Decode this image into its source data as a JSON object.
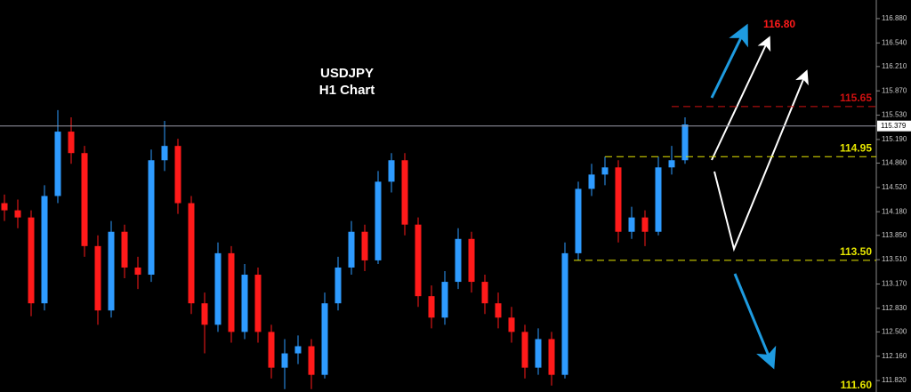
{
  "chart_data": {
    "type": "candlestick",
    "title": "USDJPY",
    "subtitle": "H1 Chart",
    "ylim": [
      111.66,
      117.14
    ],
    "yticks": [
      {
        "value": 116.88,
        "label": "116.880"
      },
      {
        "value": 116.54,
        "label": "116.540"
      },
      {
        "value": 116.21,
        "label": "116.210"
      },
      {
        "value": 115.87,
        "label": "115.870"
      },
      {
        "value": 115.53,
        "label": "115.530"
      },
      {
        "value": 115.19,
        "label": "115.190"
      },
      {
        "value": 114.86,
        "label": "114.860"
      },
      {
        "value": 114.52,
        "label": "114.520"
      },
      {
        "value": 114.18,
        "label": "114.180"
      },
      {
        "value": 113.85,
        "label": "113.850"
      },
      {
        "value": 113.51,
        "label": "113.510"
      },
      {
        "value": 113.17,
        "label": "113.170"
      },
      {
        "value": 112.83,
        "label": "112.830"
      },
      {
        "value": 112.5,
        "label": "112.500"
      },
      {
        "value": 112.16,
        "label": "112.160"
      },
      {
        "value": 111.82,
        "label": "111.820"
      }
    ],
    "up_color": "#2e9bff",
    "down_color": "#ff1a1a",
    "open": [
      114.3,
      114.2,
      114.1,
      112.9,
      114.4,
      115.3,
      115.0,
      113.7,
      112.8,
      113.9,
      113.4,
      113.3,
      114.9,
      115.1,
      114.3,
      112.9,
      112.6,
      113.6,
      112.5,
      113.3,
      112.5,
      112.0,
      112.2,
      112.3,
      111.9,
      112.9,
      113.4,
      113.9,
      113.5,
      114.6,
      114.9,
      114.0,
      113.0,
      112.7,
      113.2,
      113.8,
      113.2,
      112.9,
      112.7,
      112.5,
      112.0,
      112.4,
      111.9,
      113.6,
      114.5,
      114.7,
      114.8,
      113.9,
      114.1,
      113.9,
      114.8,
      114.9
    ],
    "high": [
      114.42,
      114.35,
      114.2,
      114.55,
      115.6,
      115.5,
      115.1,
      113.85,
      114.05,
      114.0,
      113.55,
      115.05,
      115.45,
      115.2,
      114.4,
      113.05,
      113.75,
      113.7,
      113.45,
      113.4,
      112.6,
      112.4,
      112.45,
      112.4,
      113.05,
      113.55,
      114.05,
      114.0,
      114.75,
      115.0,
      115.0,
      114.1,
      113.15,
      113.35,
      113.95,
      113.9,
      113.3,
      113.05,
      112.85,
      112.6,
      112.55,
      112.5,
      113.75,
      114.6,
      114.85,
      114.95,
      114.9,
      114.25,
      114.2,
      114.95,
      115.1,
      115.5
    ],
    "low": [
      114.05,
      113.95,
      112.72,
      112.8,
      114.3,
      114.85,
      113.55,
      112.6,
      112.7,
      113.25,
      113.1,
      113.2,
      114.75,
      114.15,
      112.75,
      112.2,
      112.5,
      112.35,
      112.4,
      112.35,
      111.85,
      111.7,
      112.05,
      111.7,
      111.85,
      112.8,
      113.3,
      113.35,
      113.45,
      114.45,
      113.85,
      112.85,
      112.55,
      112.6,
      113.1,
      113.05,
      112.75,
      112.55,
      112.35,
      111.85,
      111.9,
      111.75,
      111.85,
      113.5,
      114.4,
      114.55,
      113.75,
      113.8,
      113.7,
      113.85,
      114.7,
      114.85
    ],
    "close": [
      114.2,
      114.1,
      112.9,
      114.4,
      115.3,
      115.0,
      113.7,
      112.8,
      113.9,
      113.4,
      113.3,
      114.9,
      115.1,
      114.3,
      112.9,
      112.6,
      113.6,
      112.5,
      113.3,
      112.5,
      112.0,
      112.2,
      112.3,
      111.9,
      112.9,
      113.4,
      113.9,
      113.5,
      114.6,
      114.9,
      114.0,
      113.0,
      112.7,
      113.2,
      113.8,
      113.2,
      112.9,
      112.7,
      112.5,
      112.0,
      112.4,
      111.9,
      113.6,
      114.5,
      114.7,
      114.8,
      113.9,
      114.1,
      113.9,
      114.8,
      114.9,
      115.4
    ],
    "current_price": {
      "value": 115.379,
      "label": "115.379"
    },
    "levels": [
      {
        "value": 115.65,
        "label": "115.65",
        "color": "#d01010"
      },
      {
        "value": 114.95,
        "label": "114.95",
        "color": "#e6e600"
      },
      {
        "value": 113.5,
        "label": "113.50",
        "color": "#e6e600"
      }
    ],
    "targets": [
      {
        "value": 116.8,
        "label": "116.80",
        "color": "#ff1a1a"
      },
      {
        "value": 111.6,
        "label": "111.60",
        "color": "#e6e600"
      }
    ]
  }
}
